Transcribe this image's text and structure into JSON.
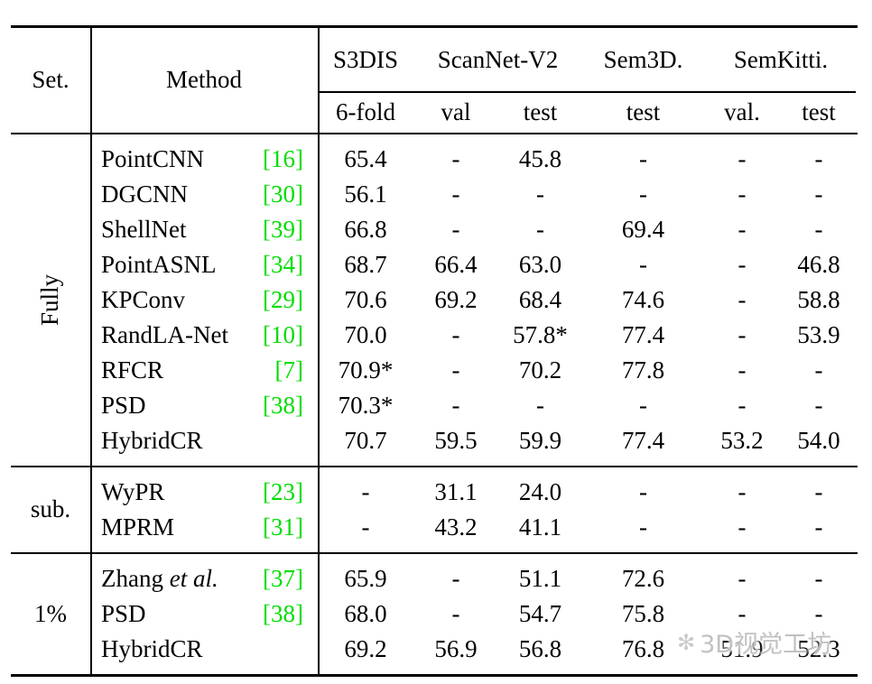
{
  "colors": {
    "background": "#ffffff",
    "text": "#000000",
    "citation_green": "#00dd00",
    "watermark_gray": "#bababa"
  },
  "header": {
    "set": "Set.",
    "method": "Method",
    "datasets": [
      "S3DIS",
      "ScanNet-V2",
      "Sem3D.",
      "SemKitti."
    ],
    "subcols": [
      "6-fold",
      "val",
      "test",
      "test",
      "val.",
      "test"
    ]
  },
  "groups": [
    {
      "set": "Fully",
      "rows": [
        {
          "method": "PointCNN",
          "cite": "[16]",
          "values": [
            "65.4",
            "-",
            "45.8",
            "-",
            "-",
            "-"
          ]
        },
        {
          "method": "DGCNN",
          "cite": "[30]",
          "values": [
            "56.1",
            "-",
            "-",
            "-",
            "-",
            "-"
          ]
        },
        {
          "method": "ShellNet",
          "cite": "[39]",
          "values": [
            "66.8",
            "-",
            "-",
            "69.4",
            "-",
            "-"
          ]
        },
        {
          "method": "PointASNL",
          "cite": "[34]",
          "values": [
            "68.7",
            "66.4",
            "63.0",
            "-",
            "-",
            "46.8"
          ]
        },
        {
          "method": "KPConv",
          "cite": "[29]",
          "values": [
            "70.6",
            "69.2",
            "68.4",
            "74.6",
            "-",
            "58.8"
          ]
        },
        {
          "method": "RandLA-Net",
          "cite": "[10]",
          "values": [
            "70.0",
            "-",
            "57.8*",
            "77.4",
            "-",
            "53.9"
          ]
        },
        {
          "method": "RFCR",
          "cite": "[7]",
          "values": [
            "70.9*",
            "-",
            "70.2",
            "77.8",
            "-",
            "-"
          ]
        },
        {
          "method": "PSD",
          "cite": "[38]",
          "values": [
            "70.3*",
            "-",
            "-",
            "-",
            "-",
            "-"
          ]
        },
        {
          "method": "HybridCR",
          "cite": "",
          "values": [
            "70.7",
            "59.5",
            "59.9",
            "77.4",
            "53.2",
            "54.0"
          ]
        }
      ]
    },
    {
      "set": "sub.",
      "rows": [
        {
          "method": "WyPR",
          "cite": "[23]",
          "values": [
            "-",
            "31.1",
            "24.0",
            "-",
            "-",
            "-"
          ]
        },
        {
          "method": "MPRM",
          "cite": "[31]",
          "values": [
            "-",
            "43.2",
            "41.1",
            "-",
            "-",
            "-"
          ]
        }
      ]
    },
    {
      "set": "1%",
      "rows": [
        {
          "method": "Zhang ",
          "method_italic": "et al.",
          "cite": "[37]",
          "values": [
            "65.9",
            "-",
            "51.1",
            "72.6",
            "-",
            "-"
          ]
        },
        {
          "method": "PSD",
          "cite": "[38]",
          "values": [
            "68.0",
            "-",
            "54.7",
            "75.8",
            "-",
            "-"
          ]
        },
        {
          "method": "HybridCR",
          "cite": "",
          "values": [
            "69.2",
            "56.9",
            "56.8",
            "76.8",
            "51.9",
            "52.3"
          ]
        }
      ]
    }
  ],
  "watermark": {
    "logo": "✻",
    "text": "3D视觉工坊"
  }
}
